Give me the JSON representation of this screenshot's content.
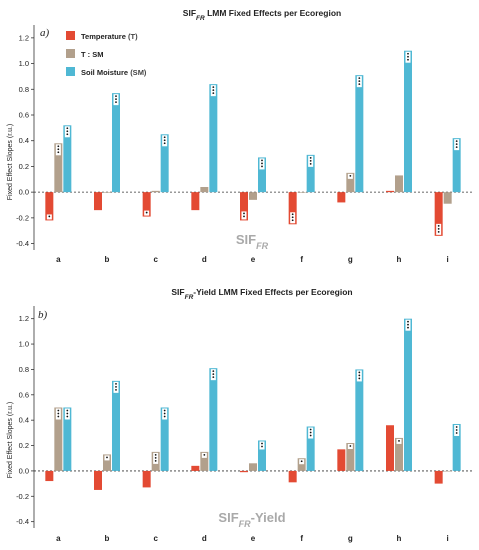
{
  "legend": [
    {
      "name": "Temperature",
      "abbr": "(T)",
      "color": "#e34a33"
    },
    {
      "name": "T : SM",
      "abbr": "",
      "color": "#b2a08c"
    },
    {
      "name": "Soil Moisture",
      "abbr": "(SM)",
      "color": "#4fb8d4"
    }
  ],
  "chart_data": [
    {
      "type": "bar",
      "panel_label": "a)",
      "title": "SIF",
      "title_sub": "FR",
      "title_rest": " LMM Fixed Effects per Ecoregion",
      "watermark_main": "SIF",
      "watermark_sub": "FR",
      "watermark_rest": "",
      "ylabel": "Fixed Effect Slopes (r.u.)",
      "ylim": [
        -0.45,
        1.3
      ],
      "yticks": [
        "-0.4",
        "-0.2",
        "0.0",
        "0.2",
        "0.4",
        "0.6",
        "0.8",
        "1.0",
        "1.2"
      ],
      "categories": [
        "a",
        "b",
        "c",
        "d",
        "e",
        "f",
        "g",
        "h",
        "i"
      ],
      "series": [
        {
          "name": "Temperature",
          "values": [
            -0.22,
            -0.14,
            -0.19,
            -0.14,
            -0.22,
            -0.25,
            -0.08,
            0.01,
            -0.34
          ],
          "sig": [
            1,
            0,
            1,
            0,
            2,
            3,
            0,
            0,
            3
          ]
        },
        {
          "name": "T : SM",
          "values": [
            0.38,
            0.0,
            0.01,
            0.04,
            -0.06,
            0.0,
            0.15,
            0.13,
            -0.09
          ],
          "sig": [
            3,
            0,
            0,
            0,
            0,
            0,
            1,
            0,
            0
          ]
        },
        {
          "name": "Soil Moisture",
          "values": [
            0.52,
            0.77,
            0.45,
            0.84,
            0.27,
            0.29,
            0.91,
            1.1,
            0.42
          ],
          "sig": [
            3,
            3,
            3,
            3,
            3,
            3,
            3,
            3,
            3
          ]
        }
      ]
    },
    {
      "type": "bar",
      "panel_label": "b)",
      "title": "SIF",
      "title_sub": "FR",
      "title_rest": "-Yield LMM Fixed Effects per Ecoregion",
      "watermark_main": "SIF",
      "watermark_sub": "FR",
      "watermark_rest": "-Yield",
      "ylabel": "Fixed Effect Slopes (r.u.)",
      "ylim": [
        -0.45,
        1.3
      ],
      "yticks": [
        "-0.4",
        "-0.2",
        "0.0",
        "0.2",
        "0.4",
        "0.6",
        "0.8",
        "1.0",
        "1.2"
      ],
      "categories": [
        "a",
        "b",
        "c",
        "d",
        "e",
        "f",
        "g",
        "h",
        "i"
      ],
      "series": [
        {
          "name": "Temperature",
          "values": [
            -0.08,
            -0.15,
            -0.13,
            0.04,
            -0.01,
            -0.09,
            0.17,
            0.36,
            -0.1
          ],
          "sig": [
            0,
            0,
            0,
            0,
            0,
            0,
            0,
            0,
            0
          ]
        },
        {
          "name": "T : SM",
          "values": [
            0.5,
            0.13,
            0.15,
            0.15,
            0.06,
            0.1,
            0.22,
            0.26,
            0.0
          ],
          "sig": [
            3,
            1,
            3,
            1,
            0,
            1,
            1,
            1,
            0
          ]
        },
        {
          "name": "Soil Moisture",
          "values": [
            0.5,
            0.71,
            0.5,
            0.81,
            0.24,
            0.35,
            0.8,
            1.2,
            0.37
          ],
          "sig": [
            3,
            3,
            3,
            3,
            2,
            3,
            3,
            3,
            3
          ]
        }
      ]
    }
  ]
}
